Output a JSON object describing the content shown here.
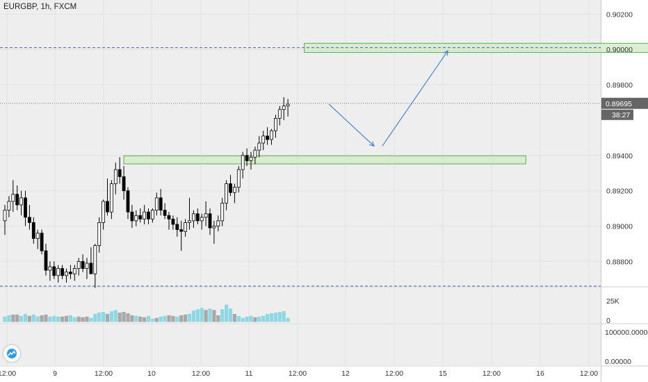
{
  "header": {
    "symbol": "EURGBP, 1h, FXCM"
  },
  "colors": {
    "background": "#eeeeee",
    "up_candle_fill": "#ffffff",
    "down_candle_fill": "#000000",
    "wick": "#000000",
    "volume_up": "#8fd8e3",
    "volume_down": "#a8a8a8",
    "zone_fill": "#d4ebc7",
    "zone_stroke": "#58b050",
    "level_line": "#4a5fc1",
    "arrow": "#3a7fd0",
    "price_tag_bg": "#666666",
    "price_tag_text": "#ffffff"
  },
  "price_axis": {
    "ticks": [
      "0.90200",
      "0.90000",
      "0.89800",
      "0.89400",
      "0.89200",
      "0.89000",
      "0.88800"
    ],
    "current_price": "0.89695",
    "countdown": "38:27"
  },
  "volume_axis": {
    "ticks": [
      "25K",
      "0"
    ]
  },
  "indicator_axis": {
    "ticks": [
      "100000.00000",
      "0.00000"
    ]
  },
  "time_axis": {
    "ticks": [
      "12:00",
      "9",
      "12:00",
      "10",
      "12:00",
      "11",
      "12:00",
      "12",
      "12:00",
      "15",
      "12:00",
      "16",
      "12:00"
    ]
  },
  "logo": {
    "name": "tradingview-logo-icon"
  },
  "chart_data": {
    "type": "candlestick",
    "symbol": "EURGBP",
    "timeframe": "1h",
    "ylim": [
      0.8866,
      0.9028
    ],
    "candles": [
      [
        0.8903,
        0.8912,
        0.8895,
        0.8909
      ],
      [
        0.8909,
        0.8917,
        0.8905,
        0.8914
      ],
      [
        0.8914,
        0.8926,
        0.8908,
        0.8918
      ],
      [
        0.8918,
        0.8923,
        0.8909,
        0.8912
      ],
      [
        0.8912,
        0.892,
        0.8906,
        0.8916
      ],
      [
        0.8916,
        0.892,
        0.89,
        0.8905
      ],
      [
        0.8905,
        0.8912,
        0.8898,
        0.8902
      ],
      [
        0.8902,
        0.8905,
        0.889,
        0.8893
      ],
      [
        0.8893,
        0.8898,
        0.8887,
        0.8896
      ],
      [
        0.8896,
        0.8898,
        0.8884,
        0.8886
      ],
      [
        0.8886,
        0.889,
        0.8872,
        0.8875
      ],
      [
        0.8875,
        0.888,
        0.8869,
        0.8877
      ],
      [
        0.8877,
        0.888,
        0.887,
        0.8872
      ],
      [
        0.8872,
        0.8878,
        0.8868,
        0.8876
      ],
      [
        0.8876,
        0.8878,
        0.887,
        0.8872
      ],
      [
        0.8872,
        0.8876,
        0.8868,
        0.8874
      ],
      [
        0.8874,
        0.8878,
        0.887,
        0.8873
      ],
      [
        0.8873,
        0.8878,
        0.8869,
        0.8876
      ],
      [
        0.8876,
        0.8882,
        0.8872,
        0.888
      ],
      [
        0.888,
        0.8884,
        0.8874,
        0.8876
      ],
      [
        0.8876,
        0.8882,
        0.887,
        0.8879
      ],
      [
        0.8879,
        0.8888,
        0.8873,
        0.8873
      ],
      [
        0.8873,
        0.889,
        0.8865,
        0.8889
      ],
      [
        0.8889,
        0.8905,
        0.8885,
        0.8902
      ],
      [
        0.8902,
        0.8915,
        0.8898,
        0.8914
      ],
      [
        0.8914,
        0.8927,
        0.8906,
        0.8908
      ],
      [
        0.8908,
        0.8926,
        0.8904,
        0.8924
      ],
      [
        0.8924,
        0.8936,
        0.8918,
        0.8932
      ],
      [
        0.8932,
        0.8939,
        0.8924,
        0.8928
      ],
      [
        0.8928,
        0.8934,
        0.8915,
        0.892
      ],
      [
        0.892,
        0.8922,
        0.8904,
        0.8908
      ],
      [
        0.8908,
        0.8912,
        0.8899,
        0.8903
      ],
      [
        0.8903,
        0.8909,
        0.89,
        0.8906
      ],
      [
        0.8906,
        0.891,
        0.8902,
        0.8904
      ],
      [
        0.8904,
        0.8912,
        0.8901,
        0.8908
      ],
      [
        0.8908,
        0.891,
        0.8901,
        0.8904
      ],
      [
        0.8904,
        0.891,
        0.8902,
        0.8909
      ],
      [
        0.8909,
        0.8919,
        0.8906,
        0.8916
      ],
      [
        0.8916,
        0.8921,
        0.8906,
        0.8909
      ],
      [
        0.8909,
        0.8913,
        0.8904,
        0.8906
      ],
      [
        0.8906,
        0.8908,
        0.8898,
        0.8904
      ],
      [
        0.8904,
        0.8906,
        0.8898,
        0.8901
      ],
      [
        0.8901,
        0.8905,
        0.8894,
        0.8898
      ],
      [
        0.8898,
        0.8903,
        0.8886,
        0.8897
      ],
      [
        0.8897,
        0.8904,
        0.8894,
        0.8902
      ],
      [
        0.8902,
        0.8916,
        0.8898,
        0.8903
      ],
      [
        0.8903,
        0.8909,
        0.8899,
        0.8907
      ],
      [
        0.8907,
        0.891,
        0.8901,
        0.8903
      ],
      [
        0.8903,
        0.8907,
        0.8898,
        0.8905
      ],
      [
        0.8905,
        0.8914,
        0.89,
        0.8907
      ],
      [
        0.8907,
        0.891,
        0.8895,
        0.8899
      ],
      [
        0.8899,
        0.8903,
        0.889,
        0.89
      ],
      [
        0.89,
        0.8906,
        0.8897,
        0.8903
      ],
      [
        0.8903,
        0.8916,
        0.89,
        0.8913
      ],
      [
        0.8913,
        0.8926,
        0.8909,
        0.8924
      ],
      [
        0.8924,
        0.8929,
        0.8917,
        0.8919
      ],
      [
        0.8919,
        0.8924,
        0.8913,
        0.8922
      ],
      [
        0.8922,
        0.8934,
        0.8919,
        0.8932
      ],
      [
        0.8932,
        0.8942,
        0.8927,
        0.894
      ],
      [
        0.894,
        0.8944,
        0.8934,
        0.8937
      ],
      [
        0.8937,
        0.8942,
        0.8932,
        0.8939
      ],
      [
        0.8939,
        0.8945,
        0.8935,
        0.8943
      ],
      [
        0.8943,
        0.8951,
        0.8939,
        0.8947
      ],
      [
        0.8947,
        0.8954,
        0.8943,
        0.8951
      ],
      [
        0.8951,
        0.8956,
        0.8946,
        0.8949
      ],
      [
        0.8949,
        0.8955,
        0.8946,
        0.8954
      ],
      [
        0.8954,
        0.8963,
        0.895,
        0.8961
      ],
      [
        0.8961,
        0.8968,
        0.8957,
        0.8966
      ],
      [
        0.8966,
        0.8973,
        0.896,
        0.8968
      ],
      [
        0.8968,
        0.8972,
        0.8962,
        0.8969
      ]
    ],
    "volume": [
      [
        8,
        1
      ],
      [
        10,
        1
      ],
      [
        11,
        0
      ],
      [
        11,
        0
      ],
      [
        9,
        1
      ],
      [
        12,
        1
      ],
      [
        9,
        0
      ],
      [
        11,
        1
      ],
      [
        8,
        1
      ],
      [
        10,
        0
      ],
      [
        11,
        0
      ],
      [
        8,
        1
      ],
      [
        9,
        1
      ],
      [
        8,
        1
      ],
      [
        8,
        0
      ],
      [
        9,
        0
      ],
      [
        10,
        1
      ],
      [
        7,
        1
      ],
      [
        8,
        0
      ],
      [
        7,
        0
      ],
      [
        8,
        0
      ],
      [
        6,
        1
      ],
      [
        12,
        1
      ],
      [
        14,
        1
      ],
      [
        15,
        1
      ],
      [
        12,
        0
      ],
      [
        16,
        1
      ],
      [
        18,
        1
      ],
      [
        14,
        0
      ],
      [
        15,
        0
      ],
      [
        13,
        0
      ],
      [
        10,
        0
      ],
      [
        9,
        1
      ],
      [
        8,
        0
      ],
      [
        7,
        0
      ],
      [
        9,
        1
      ],
      [
        5,
        1
      ],
      [
        6,
        0
      ],
      [
        8,
        1
      ],
      [
        9,
        1
      ],
      [
        10,
        0
      ],
      [
        9,
        0
      ],
      [
        8,
        1
      ],
      [
        10,
        0
      ],
      [
        11,
        0
      ],
      [
        12,
        1
      ],
      [
        17,
        1
      ],
      [
        19,
        1
      ],
      [
        21,
        1
      ],
      [
        18,
        0
      ],
      [
        20,
        1
      ],
      [
        18,
        0
      ],
      [
        10,
        0
      ],
      [
        19,
        1
      ],
      [
        26,
        1
      ],
      [
        20,
        1
      ],
      [
        12,
        0
      ],
      [
        9,
        1
      ],
      [
        6,
        1
      ],
      [
        8,
        1
      ],
      [
        9,
        1
      ],
      [
        7,
        0
      ],
      [
        8,
        1
      ],
      [
        9,
        1
      ],
      [
        12,
        1
      ],
      [
        13,
        1
      ],
      [
        14,
        1
      ],
      [
        15,
        1
      ],
      [
        16,
        1
      ],
      [
        6,
        1
      ]
    ],
    "price_levels": [
      0.9001,
      0.8866
    ],
    "zones": [
      {
        "start_bar": 73,
        "end_bar": 161,
        "from": 0.89983,
        "to": 0.90035
      },
      {
        "start_bar": 29,
        "end_bar": 127,
        "from": 0.89352,
        "to": 0.89398
      }
    ],
    "arrows": [
      {
        "from_bar": 79,
        "from_price": 0.8969,
        "to_bar": 90,
        "to_price": 0.89453
      },
      {
        "from_bar": 92,
        "from_price": 0.89453,
        "to_bar": 108,
        "to_price": 0.89993
      }
    ],
    "x_axis_time_ticks": [
      "12:00",
      "9",
      "12:00",
      "10",
      "12:00",
      "11",
      "12:00",
      "12",
      "12:00",
      "15",
      "12:00",
      "16",
      "12:00"
    ]
  }
}
